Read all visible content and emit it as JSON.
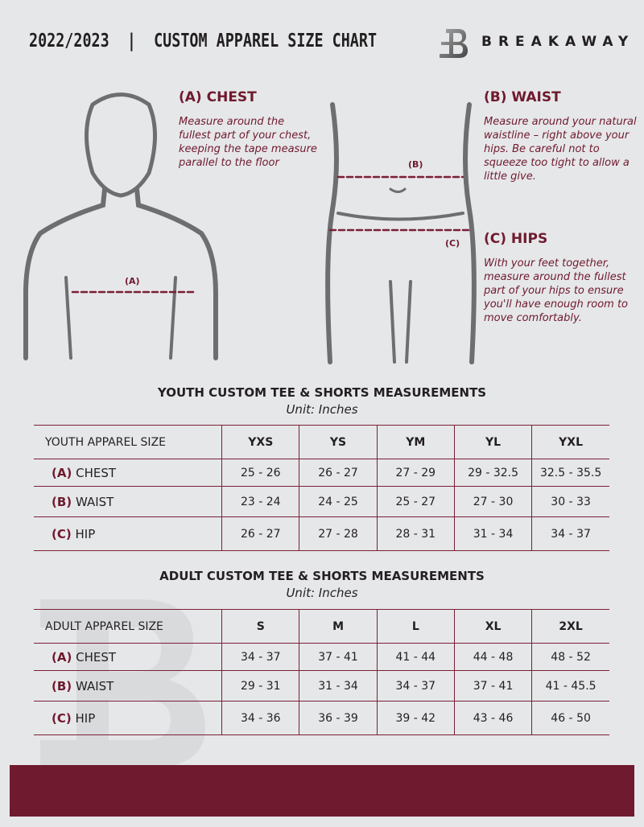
{
  "header": {
    "title": "2022/2023  |  CUSTOM APPAREL SIZE CHART",
    "brand": "BREAKAWAY",
    "logo_letter": "B"
  },
  "colors": {
    "accent": "#6f1a2e",
    "background": "#e6e7e9"
  },
  "sections": {
    "chest": {
      "heading": "(A) CHEST",
      "text": "Measure around the fullest part of your chest, keeping the tape measure parallel to the floor",
      "marker": "(A)"
    },
    "waist": {
      "heading": "(B) WAIST",
      "text": "Measure around your natural waistline – right above your hips. Be careful not to squeeze too tight to allow a little give.",
      "marker": "(B)"
    },
    "hips": {
      "heading": "(C) HIPS",
      "text": "With your feet together, measure around the fullest part of your hips to ensure you'll have enough room to move comfortably.",
      "marker": "(C)"
    }
  },
  "youth": {
    "title": "YOUTH CUSTOM TEE & SHORTS MEASUREMENTS",
    "unit": "Unit: Inches",
    "header": [
      "YOUTH APPAREL SIZE",
      "YXS",
      "YS",
      "YM",
      "YL",
      "YXL"
    ],
    "rows": [
      {
        "letter": "(A)",
        "name": "CHEST",
        "values": [
          "25 - 26",
          "26 - 27",
          "27 - 29",
          "29 - 32.5",
          "32.5 - 35.5"
        ]
      },
      {
        "letter": "(B)",
        "name": "WAIST",
        "values": [
          "23 - 24",
          "24 - 25",
          "25 - 27",
          "27 - 30",
          "30 - 33"
        ]
      },
      {
        "letter": "(C)",
        "name": "HIP",
        "values": [
          "26 - 27",
          "27 - 28",
          "28 - 31",
          "31 - 34",
          "34 - 37"
        ]
      }
    ]
  },
  "adult": {
    "title": "ADULT CUSTOM TEE & SHORTS MEASUREMENTS",
    "unit": "Unit: Inches",
    "header": [
      "ADULT APPAREL SIZE",
      "S",
      "M",
      "L",
      "XL",
      "2XL"
    ],
    "rows": [
      {
        "letter": "(A)",
        "name": "CHEST",
        "values": [
          "34 - 37",
          "37 - 41",
          "41 - 44",
          "44 - 48",
          "48 - 52"
        ]
      },
      {
        "letter": "(B)",
        "name": "WAIST",
        "values": [
          "29 - 31",
          "31 - 34",
          "34 - 37",
          "37 - 41",
          "41 - 45.5"
        ]
      },
      {
        "letter": "(C)",
        "name": "HIP",
        "values": [
          "34 - 36",
          "36 - 39",
          "39 - 42",
          "43 - 46",
          "46 - 50"
        ]
      }
    ]
  }
}
